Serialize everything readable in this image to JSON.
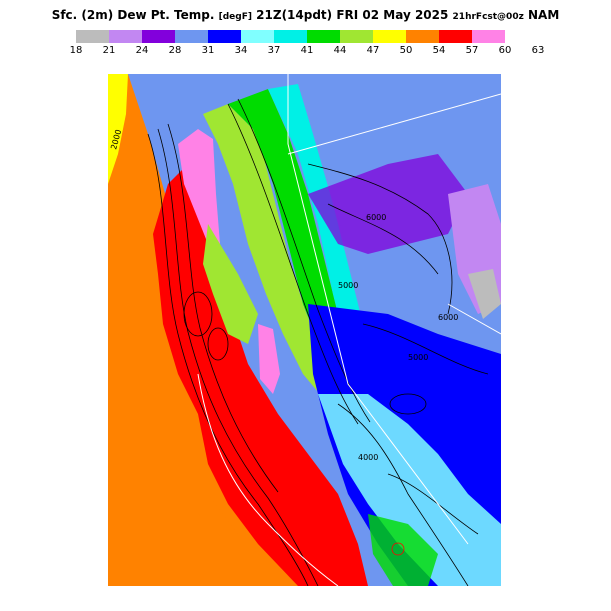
{
  "title": {
    "main": "Sfc. (2m) Dew Pt. Temp.",
    "unit": "[degF]",
    "valid": "21Z(14pdt) FRI 02 May 2025",
    "forecast": "21hrFcst@00z",
    "model": "NAM"
  },
  "legend": {
    "colors": [
      "#bcbcbc",
      "#c287f2",
      "#8200dc",
      "#6e96f0",
      "#0000ff",
      "#80ffff",
      "#00f0e6",
      "#00dc00",
      "#a0e632",
      "#ffff00",
      "#ff8200",
      "#ff0000",
      "#ff82e6"
    ],
    "ticks": [
      "18",
      "21",
      "24",
      "28",
      "31",
      "34",
      "37",
      "41",
      "44",
      "47",
      "50",
      "54",
      "57",
      "60",
      "63"
    ]
  },
  "map": {
    "region": "California-Nevada",
    "contour_labels": [
      "6000",
      "5000",
      "6000",
      "5000",
      "4000",
      "2000"
    ]
  }
}
